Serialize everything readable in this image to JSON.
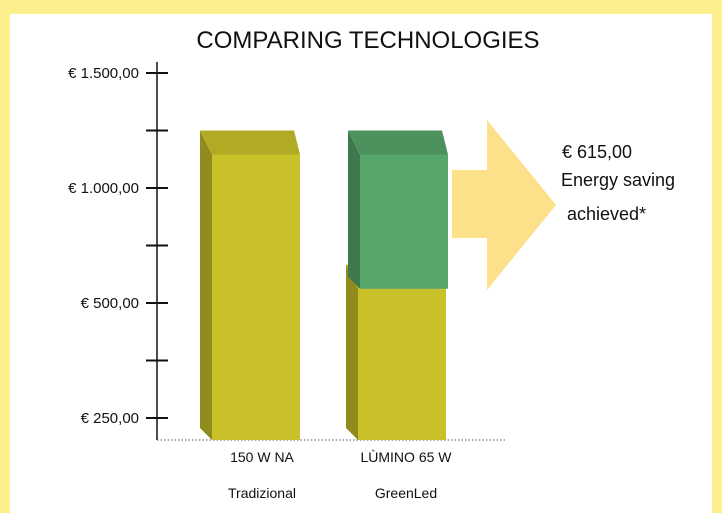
{
  "chart_data": {
    "type": "bar",
    "title": "COMPARING TECHNOLOGIES",
    "xlabel": "",
    "ylabel": "",
    "categories": [
      "150 W NA",
      "LÙMINO 65 W"
    ],
    "category_sublabels": [
      "Tradizional",
      "GreenLed"
    ],
    "y_ticks": [
      {
        "value": 250,
        "label": "€ 250,00"
      },
      {
        "value": 500,
        "label": "€ 500,00"
      },
      {
        "value": 1000,
        "label": "€ 1.000,00"
      },
      {
        "value": 1500,
        "label": "€ 1.500,00"
      }
    ],
    "series": [
      {
        "values": [
          1250,
          640
        ],
        "color": "#c9c12a"
      },
      {
        "values": [
          0,
          615
        ],
        "color": "#57a66b"
      }
    ],
    "grid": false,
    "annotation": {
      "value": "€ 615,00",
      "line1": "Energy saving",
      "line2": "achieved*",
      "arrow_color": "#fde08a"
    }
  }
}
